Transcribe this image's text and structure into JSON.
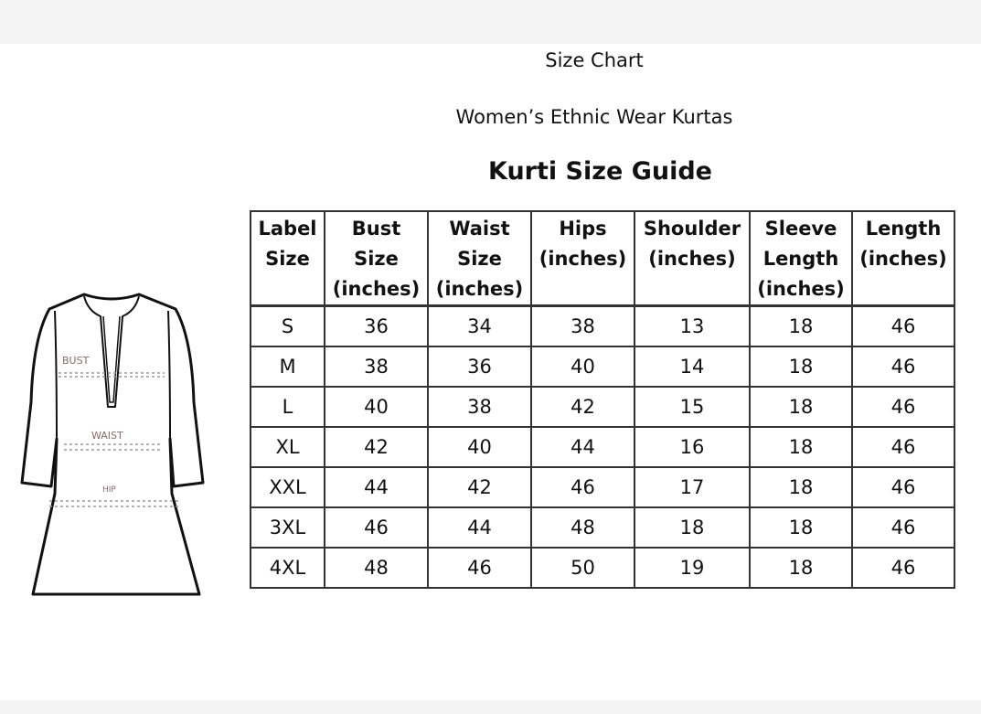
{
  "title": "Size Chart",
  "subtitle": "Women’s Ethnic Wear Kurtas",
  "heading": "Kurti Size Guide",
  "illustration": {
    "labels": {
      "bust": "BUST",
      "waist": "WAIST",
      "hip": "HIP"
    },
    "label_color": "#8a6a6a"
  },
  "table": {
    "headers": [
      [
        "Label",
        "Size"
      ],
      [
        "Bust",
        "Size",
        "(inches)"
      ],
      [
        "Waist",
        "Size",
        "(inches)"
      ],
      [
        "Hips",
        "(inches)"
      ],
      [
        "Shoulder",
        "(inches)"
      ],
      [
        "Sleeve",
        "Length",
        "(inches)"
      ],
      [
        "Length",
        "(inches)"
      ]
    ],
    "rows": [
      [
        "S",
        "36",
        "34",
        "38",
        "13",
        "18",
        "46"
      ],
      [
        "M",
        "38",
        "36",
        "40",
        "14",
        "18",
        "46"
      ],
      [
        "L",
        "40",
        "38",
        "42",
        "15",
        "18",
        "46"
      ],
      [
        "XL",
        "42",
        "40",
        "44",
        "16",
        "18",
        "46"
      ],
      [
        "XXL",
        "44",
        "42",
        "46",
        "17",
        "18",
        "46"
      ],
      [
        "3XL",
        "46",
        "44",
        "48",
        "18",
        "18",
        "46"
      ],
      [
        "4XL",
        "48",
        "46",
        "50",
        "19",
        "18",
        "46"
      ]
    ]
  }
}
